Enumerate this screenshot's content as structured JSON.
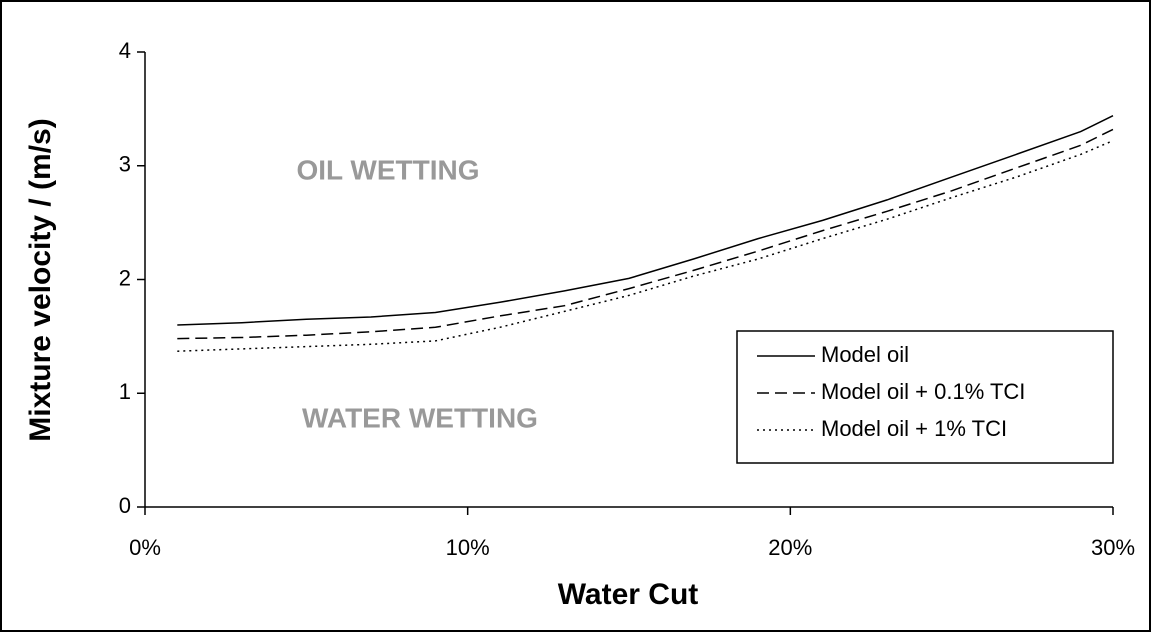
{
  "chart_data": {
    "type": "line",
    "x_label": "Water Cut",
    "y_label": "Mixture velocity / (m/s)",
    "annotations": [
      "OIL WETTING",
      "WATER WETTING"
    ],
    "x": [
      1,
      3,
      5,
      7,
      9,
      11,
      13,
      15,
      17,
      19,
      21,
      23,
      25,
      27,
      29,
      30
    ],
    "series": [
      {
        "name": "Model oil",
        "color": "#000000",
        "dash": "solid",
        "values": [
          1.6,
          1.62,
          1.65,
          1.67,
          1.71,
          1.8,
          1.9,
          2.01,
          2.18,
          2.36,
          2.52,
          2.7,
          2.9,
          3.1,
          3.3,
          3.44
        ]
      },
      {
        "name": "Model oil + 0.1% TCI",
        "color": "#000000",
        "dash": "dashed",
        "values": [
          1.48,
          1.49,
          1.51,
          1.54,
          1.58,
          1.68,
          1.77,
          1.92,
          2.08,
          2.25,
          2.43,
          2.6,
          2.78,
          2.98,
          3.18,
          3.32
        ]
      },
      {
        "name": "Model oil + 1% TCI",
        "color": "#000000",
        "dash": "dotted",
        "values": [
          1.37,
          1.39,
          1.41,
          1.43,
          1.46,
          1.58,
          1.72,
          1.86,
          2.03,
          2.18,
          2.36,
          2.53,
          2.72,
          2.9,
          3.1,
          3.22
        ]
      }
    ],
    "xlim": [
      0,
      30
    ],
    "xticks": [
      {
        "value": 0,
        "label": "0%"
      },
      {
        "value": 10,
        "label": "10%"
      },
      {
        "value": 20,
        "label": "20%"
      },
      {
        "value": 30,
        "label": "30%"
      }
    ],
    "ylim": [
      0,
      4
    ],
    "yticks": [
      0,
      1,
      2,
      3,
      4
    ],
    "grid": false,
    "legend": "lower-right"
  }
}
